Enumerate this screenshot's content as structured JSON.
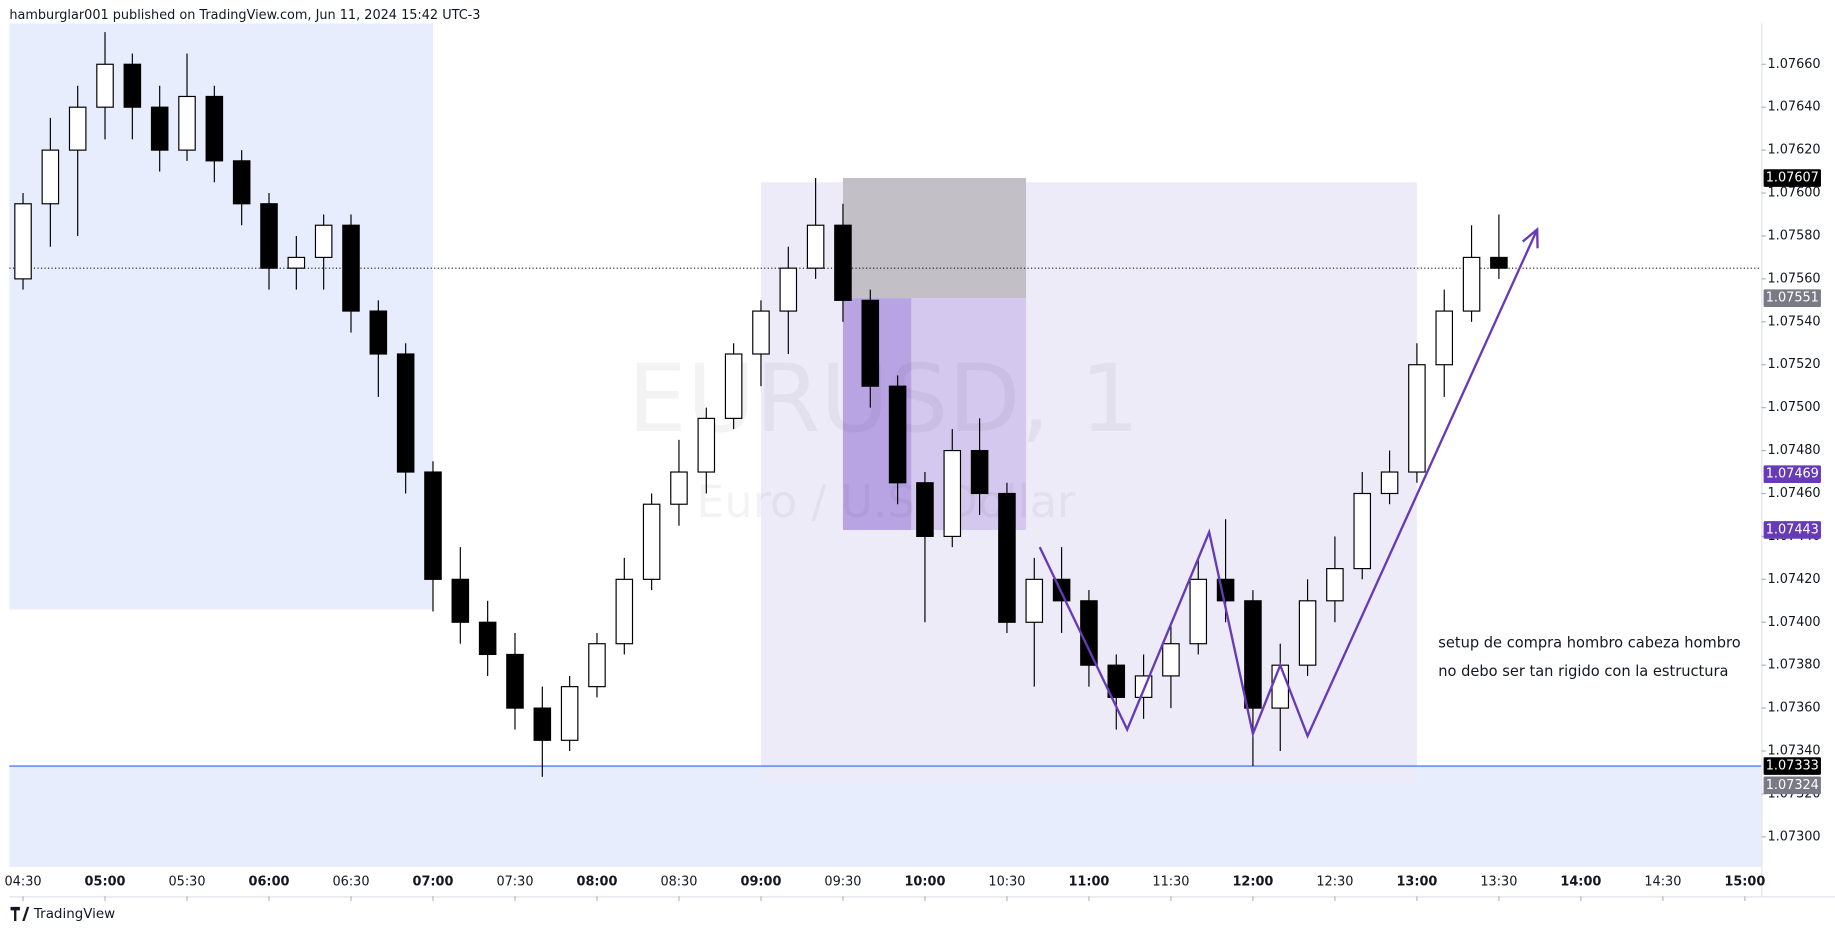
{
  "header": "hamburglar001 published on TradingView.com, Jun 11, 2024 15:42 UTC-3",
  "footer": "TradingView",
  "chart_data": {
    "type": "candlestick",
    "symbol_watermark": "EURUSD, 1",
    "description_watermark": "Euro / U.S. Dollar",
    "x": [
      "04:30",
      "04:40",
      "04:50",
      "05:00",
      "05:10",
      "05:20",
      "05:30",
      "05:40",
      "05:50",
      "06:00",
      "06:10",
      "06:20",
      "06:30",
      "06:40",
      "06:50",
      "07:00",
      "07:10",
      "07:20",
      "07:30",
      "07:40",
      "07:50",
      "08:00",
      "08:10",
      "08:20",
      "08:30",
      "08:40",
      "08:50",
      "09:00",
      "09:10",
      "09:20",
      "09:30",
      "09:40",
      "09:50",
      "10:00",
      "10:10",
      "10:20",
      "10:30",
      "10:40",
      "10:50",
      "11:00",
      "11:10",
      "11:20",
      "11:30",
      "11:40",
      "11:50",
      "12:00",
      "12:10",
      "12:20",
      "12:30",
      "12:40",
      "12:50",
      "13:00",
      "13:10",
      "13:20",
      "13:30"
    ],
    "open": [
      1.0756,
      1.07595,
      1.0762,
      1.0764,
      1.0766,
      1.0764,
      1.0762,
      1.07645,
      1.07615,
      1.07595,
      1.07565,
      1.0757,
      1.07585,
      1.07545,
      1.07525,
      1.0747,
      1.0742,
      1.074,
      1.07385,
      1.0736,
      1.07345,
      1.0737,
      1.0739,
      1.0742,
      1.07455,
      1.0747,
      1.07495,
      1.07525,
      1.07545,
      1.07565,
      1.07585,
      1.0755,
      1.0751,
      1.07465,
      1.0744,
      1.0748,
      1.0746,
      1.074,
      1.0742,
      1.0741,
      1.0738,
      1.07365,
      1.07375,
      1.0739,
      1.0742,
      1.0741,
      1.0736,
      1.0738,
      1.0741,
      1.07425,
      1.0746,
      1.0747,
      1.0752,
      1.07545,
      1.0757
    ],
    "high": [
      1.076,
      1.07635,
      1.0765,
      1.07675,
      1.07665,
      1.0765,
      1.07665,
      1.0765,
      1.0762,
      1.076,
      1.0758,
      1.0759,
      1.0759,
      1.0755,
      1.0753,
      1.07475,
      1.07435,
      1.0741,
      1.07395,
      1.0737,
      1.07375,
      1.07395,
      1.0743,
      1.0746,
      1.07485,
      1.075,
      1.0753,
      1.0755,
      1.07575,
      1.07607,
      1.07595,
      1.07555,
      1.07515,
      1.0747,
      1.0749,
      1.07495,
      1.07465,
      1.0743,
      1.07435,
      1.07415,
      1.07385,
      1.07385,
      1.074,
      1.0743,
      1.07448,
      1.07415,
      1.0739,
      1.0742,
      1.0744,
      1.0747,
      1.0748,
      1.0753,
      1.07555,
      1.07585,
      1.0759
    ],
    "low": [
      1.07555,
      1.07575,
      1.0758,
      1.07625,
      1.07625,
      1.0761,
      1.07615,
      1.07605,
      1.07585,
      1.07555,
      1.07555,
      1.07555,
      1.07535,
      1.07505,
      1.0746,
      1.07405,
      1.0739,
      1.07375,
      1.0735,
      1.07328,
      1.0734,
      1.07365,
      1.07385,
      1.07415,
      1.07445,
      1.0746,
      1.0749,
      1.0751,
      1.07525,
      1.0756,
      1.0754,
      1.075,
      1.07455,
      1.074,
      1.07435,
      1.0745,
      1.07395,
      1.0737,
      1.07395,
      1.0737,
      1.0735,
      1.07355,
      1.0736,
      1.07385,
      1.074,
      1.07333,
      1.0734,
      1.07375,
      1.074,
      1.0742,
      1.07455,
      1.07465,
      1.07505,
      1.0754,
      1.0756
    ],
    "close": [
      1.07595,
      1.0762,
      1.0764,
      1.0766,
      1.0764,
      1.0762,
      1.07645,
      1.07615,
      1.07595,
      1.07565,
      1.0757,
      1.07585,
      1.07545,
      1.07525,
      1.0747,
      1.0742,
      1.074,
      1.07385,
      1.0736,
      1.07345,
      1.0737,
      1.0739,
      1.0742,
      1.07455,
      1.0747,
      1.07495,
      1.07525,
      1.07545,
      1.07565,
      1.07585,
      1.0755,
      1.0751,
      1.07465,
      1.0744,
      1.0748,
      1.0746,
      1.074,
      1.0742,
      1.0741,
      1.0738,
      1.07365,
      1.07375,
      1.0739,
      1.0742,
      1.0741,
      1.0736,
      1.0738,
      1.0741,
      1.07425,
      1.0746,
      1.0747,
      1.0752,
      1.07545,
      1.0757,
      1.07565
    ],
    "up_color": "#ffffff",
    "down_color": "#000000",
    "xlim": [
      "04:25",
      "15:06"
    ],
    "ylim": [
      1.07286,
      1.07679
    ],
    "xticks": [
      "04:30",
      "05:00",
      "05:30",
      "06:00",
      "06:30",
      "07:00",
      "07:30",
      "08:00",
      "08:30",
      "09:00",
      "09:30",
      "10:00",
      "10:30",
      "11:00",
      "11:30",
      "12:00",
      "12:30",
      "13:00",
      "13:30",
      "14:00",
      "14:30",
      "15:00"
    ],
    "yticks": [
      {
        "value": 1.073,
        "label": "1.07300"
      },
      {
        "value": 1.0732,
        "label": "1.07320"
      },
      {
        "value": 1.0734,
        "label": "1.07340"
      },
      {
        "value": 1.0736,
        "label": "1.07360"
      },
      {
        "value": 1.0738,
        "label": "1.07380"
      },
      {
        "value": 1.074,
        "label": "1.07400"
      },
      {
        "value": 1.0742,
        "label": "1.07420"
      },
      {
        "value": 1.0744,
        "label": "1.07440"
      },
      {
        "value": 1.0746,
        "label": "1.07460"
      },
      {
        "value": 1.0748,
        "label": "1.07480"
      },
      {
        "value": 1.075,
        "label": "1.07500"
      },
      {
        "value": 1.0752,
        "label": "1.07520"
      },
      {
        "value": 1.0754,
        "label": "1.07540"
      },
      {
        "value": 1.0756,
        "label": "1.07560"
      },
      {
        "value": 1.0758,
        "label": "1.07580"
      },
      {
        "value": 1.076,
        "label": "1.07600"
      },
      {
        "value": 1.0762,
        "label": "1.07620"
      },
      {
        "value": 1.0764,
        "label": "1.07640"
      },
      {
        "value": 1.0766,
        "label": "1.07660"
      }
    ],
    "zones": [
      {
        "x": [
          "04:25",
          "07:00"
        ],
        "y": [
          1.07406,
          1.07679
        ],
        "color": "#e8edfd"
      },
      {
        "x": [
          "04:25",
          "15:06"
        ],
        "y": [
          1.07286,
          1.07333
        ],
        "color": "#e8edfd"
      },
      {
        "x": [
          "09:00",
          "13:00"
        ],
        "y": [
          1.07326,
          1.07605
        ],
        "color": "#eeebf8"
      },
      {
        "x": [
          "09:30",
          "10:37"
        ],
        "y": [
          1.07551,
          1.07607
        ],
        "color": "#c2bfc6"
      },
      {
        "x": [
          "09:30",
          "10:37"
        ],
        "y": [
          1.07443,
          1.07551
        ],
        "color": "#d5c8ee"
      },
      {
        "x": [
          "09:30",
          "09:55"
        ],
        "y": [
          1.07443,
          1.07551
        ],
        "color": "#b9a4e3"
      }
    ],
    "lines": [
      {
        "y": 1.07333,
        "color": "#2962ff",
        "style": "solid"
      },
      {
        "y": 1.07565,
        "color": "#131722",
        "style": "dotted"
      }
    ],
    "pattern": {
      "x": [
        "10:42",
        "11:14",
        "11:44",
        "12:00",
        "12:10",
        "12:20",
        "13:44"
      ],
      "y": [
        1.07435,
        1.0735,
        1.07442,
        1.07348,
        1.0738,
        1.07347,
        1.07583
      ],
      "color": "#673ab7"
    },
    "price_labels": [
      {
        "value": 1.07607,
        "color": "#000000"
      },
      {
        "value": 1.07551,
        "color": "#787b86"
      },
      {
        "value": 1.07469,
        "color": "#673ab7"
      },
      {
        "value": 1.07443,
        "color": "#673ab7"
      },
      {
        "value": 1.07333,
        "color": "#000000"
      },
      {
        "value": 1.07324,
        "color": "#787b86"
      }
    ],
    "annotations": [
      "setup de compra hombro cabeza hombro",
      "no debo ser tan rigido con la estructura"
    ]
  }
}
